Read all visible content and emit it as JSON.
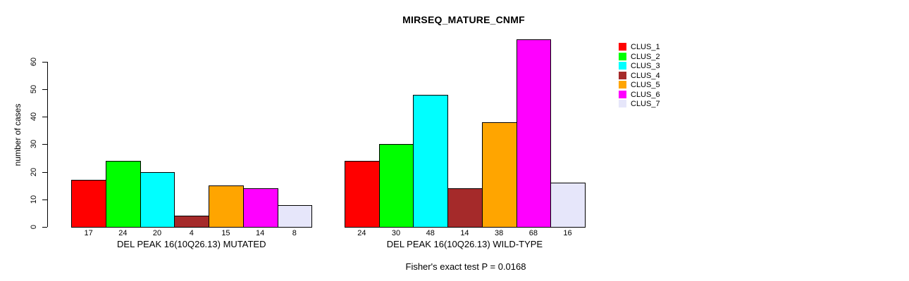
{
  "chart_data": {
    "type": "bar",
    "title": "MIRSEQ_MATURE_CNMF",
    "xlabel": "",
    "ylabel": "number of cases",
    "categories": [
      "DEL PEAK 16(10Q26.13) MUTATED",
      "DEL PEAK 16(10Q26.13) WILD-TYPE"
    ],
    "series": [
      {
        "name": "CLUS_1",
        "color": "#FF0000",
        "values": [
          17,
          24
        ]
      },
      {
        "name": "CLUS_2",
        "color": "#00FF00",
        "values": [
          24,
          30
        ]
      },
      {
        "name": "CLUS_3",
        "color": "#00FFFF",
        "values": [
          20,
          48
        ]
      },
      {
        "name": "CLUS_4",
        "color": "#A52A2A",
        "values": [
          4,
          14
        ]
      },
      {
        "name": "CLUS_5",
        "color": "#FFA500",
        "values": [
          15,
          38
        ]
      },
      {
        "name": "CLUS_6",
        "color": "#FF00FF",
        "values": [
          14,
          68
        ]
      },
      {
        "name": "CLUS_7",
        "color": "#E6E6FA",
        "values": [
          8,
          16
        ]
      }
    ],
    "bar_value_labels": [
      [
        "17",
        "24",
        "20",
        "4",
        "15",
        "14",
        "8"
      ],
      [
        "24",
        "30",
        "48",
        "14",
        "38",
        "68",
        "16"
      ]
    ],
    "yticks": [
      0,
      10,
      20,
      30,
      40,
      50,
      60
    ],
    "ylim": [
      0,
      68
    ],
    "grid": false,
    "legend_position": "right",
    "legend_labels": [
      "CLUS_1",
      "CLUS_2",
      "CLUS_3",
      "CLUS_4",
      "CLUS_5",
      "CLUS_6",
      "CLUS_7"
    ],
    "annotation": "Fisher's exact test P = 0.0168"
  }
}
